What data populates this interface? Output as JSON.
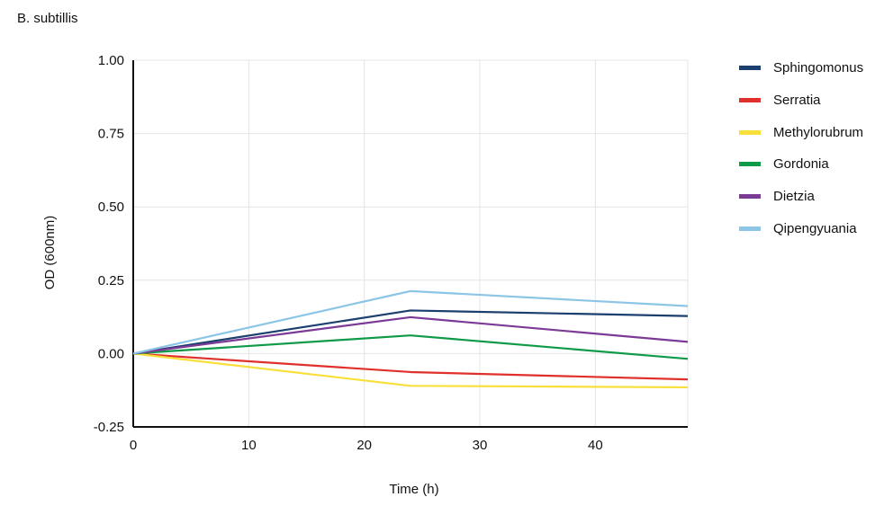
{
  "chart_data": {
    "type": "line",
    "title": "B. subtillis",
    "xlabel": "Time (h)",
    "ylabel": "OD (600nm)",
    "xlim": [
      0,
      48
    ],
    "ylim": [
      -0.25,
      1.0
    ],
    "xticks": [
      0,
      10,
      20,
      30,
      40
    ],
    "xtick_labels": [
      "0",
      "10",
      "20",
      "30",
      "40"
    ],
    "yticks": [
      -0.25,
      0,
      0.25,
      0.5,
      0.75,
      1.0
    ],
    "ytick_labels": [
      "-0.25",
      "0.00",
      "0.25",
      "0.50",
      "0.75",
      "1.00"
    ],
    "grid": true,
    "legend_position": "right",
    "x": [
      0,
      24,
      48
    ],
    "series": [
      {
        "name": "Sphingomonus",
        "color": "#1b3f6e",
        "values": [
          0,
          0.147,
          0.128
        ]
      },
      {
        "name": "Serratia",
        "color": "#e0302b",
        "values": [
          0,
          -0.063,
          -0.088
        ]
      },
      {
        "name": "Methylorubrum",
        "color": "#f9df3a",
        "values": [
          0,
          -0.11,
          -0.115
        ]
      },
      {
        "name": "Gordonia",
        "color": "#0f9a48",
        "values": [
          0,
          0.062,
          -0.018
        ]
      },
      {
        "name": "Dietzia",
        "color": "#7c3a97",
        "values": [
          0,
          0.124,
          0.04
        ]
      },
      {
        "name": "Qipengyuania",
        "color": "#8cc5e6",
        "values": [
          0,
          0.213,
          0.162
        ]
      }
    ]
  }
}
